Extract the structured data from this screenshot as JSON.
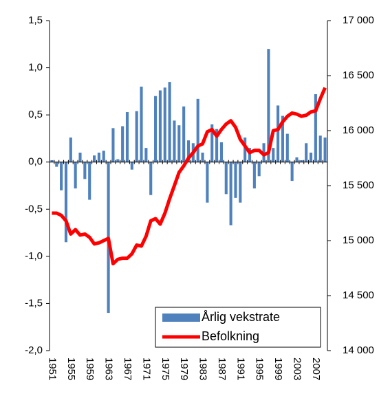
{
  "chart_data": {
    "type": "bar_line",
    "categories": [
      "1951",
      null,
      null,
      null,
      "1955",
      null,
      null,
      null,
      "1959",
      null,
      null,
      null,
      "1963",
      null,
      null,
      null,
      "1967",
      null,
      null,
      null,
      "1971",
      null,
      null,
      null,
      "1975",
      null,
      null,
      null,
      "1979",
      null,
      null,
      null,
      "1983",
      null,
      null,
      null,
      "1987",
      null,
      null,
      null,
      "1991",
      null,
      null,
      null,
      "1995",
      null,
      null,
      null,
      "1999",
      null,
      null,
      null,
      "2003",
      null,
      null,
      null,
      "2007",
      null,
      null
    ],
    "series": [
      {
        "name": "Årlig vekstrate",
        "type": "bar",
        "color": "#4f81bd",
        "values": [
          0.02,
          -0.05,
          -0.3,
          -0.85,
          0.26,
          -0.28,
          0.1,
          -0.18,
          -0.4,
          0.07,
          0.1,
          0.12,
          -1.6,
          0.36,
          0.03,
          0.38,
          0.53,
          -0.08,
          0.54,
          0.8,
          0.15,
          -0.35,
          0.7,
          0.76,
          0.79,
          0.85,
          0.44,
          0.39,
          0.59,
          0.23,
          0.2,
          0.67,
          0.1,
          -0.43,
          0.4,
          0.35,
          0.21,
          -0.34,
          -0.67,
          -0.38,
          -0.43,
          0.26,
          0.15,
          -0.28,
          -0.15,
          0.2,
          1.2,
          0.15,
          0.6,
          0.49,
          0.3,
          -0.2,
          0.05,
          0.02,
          0.2,
          0.1,
          0.72,
          0.28,
          0.26
        ]
      },
      {
        "name": "Befolkning",
        "type": "line",
        "axis": "y2",
        "color": "#ff0000",
        "values": [
          15250,
          15250,
          15230,
          15180,
          15060,
          15100,
          15050,
          15060,
          15030,
          14970,
          14980,
          15000,
          15020,
          14790,
          14830,
          14840,
          14840,
          14880,
          14960,
          14950,
          15040,
          15180,
          15200,
          15150,
          15250,
          15380,
          15500,
          15620,
          15680,
          15750,
          15800,
          15860,
          15880,
          15990,
          16010,
          15950,
          16010,
          16060,
          16090,
          16030,
          15920,
          15860,
          15800,
          15820,
          15820,
          15780,
          15800,
          16000,
          16010,
          16080,
          16130,
          16160,
          16150,
          16130,
          16140,
          16170,
          16180,
          16290,
          16390
        ]
      }
    ],
    "ylim": [
      -2,
      1.5
    ],
    "yticks": [
      {
        "value": -2,
        "label": "-2,0"
      },
      {
        "value": -1.5,
        "label": "-1,5"
      },
      {
        "value": -1,
        "label": "-1,0"
      },
      {
        "value": -0.5,
        "label": "-0,5"
      },
      {
        "value": 0,
        "label": "0,0"
      },
      {
        "value": 0.5,
        "label": "0,5"
      },
      {
        "value": 1,
        "label": "1,0"
      },
      {
        "value": 1.5,
        "label": "1,5"
      }
    ],
    "y2lim": [
      14000,
      17000
    ],
    "y2ticks": [
      {
        "value": 14000,
        "label": "14 000"
      },
      {
        "value": 14500,
        "label": "14 500"
      },
      {
        "value": 15000,
        "label": "15 000"
      },
      {
        "value": 15500,
        "label": "15 500"
      },
      {
        "value": 16000,
        "label": "16 000"
      },
      {
        "value": 16500,
        "label": "16 500"
      },
      {
        "value": 17000,
        "label": "17 000"
      }
    ],
    "legend": "lower right",
    "grid": false
  }
}
